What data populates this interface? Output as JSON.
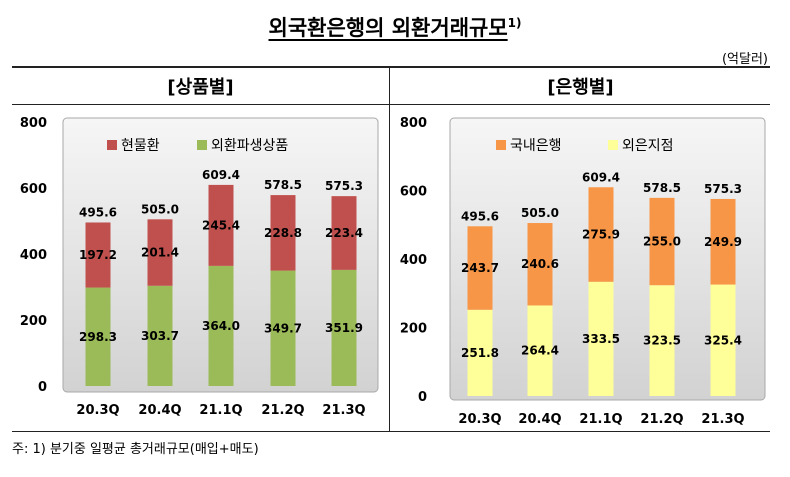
{
  "title": "외국환은행의 외환거래규모",
  "title_note": "1)",
  "unit": "(억달러)",
  "footnote": "주: 1) 분기중 일평균 총거래규모(매입+매도)",
  "chart_data": [
    {
      "type": "bar",
      "stacked": true,
      "title": "[상품별]",
      "categories": [
        "20.3Q",
        "20.4Q",
        "21.1Q",
        "21.2Q",
        "21.3Q"
      ],
      "series": [
        {
          "name": "현물환",
          "color": "#C0504D",
          "values": [
            197.2,
            201.4,
            245.4,
            228.8,
            223.4
          ]
        },
        {
          "name": "외환파생상품",
          "color": "#9BBB59",
          "values": [
            298.3,
            303.7,
            364.0,
            349.7,
            351.9
          ]
        }
      ],
      "totals": [
        495.6,
        505.0,
        609.4,
        578.5,
        575.3
      ],
      "ylim": [
        0,
        800
      ],
      "yticks": [
        0,
        200,
        400,
        600,
        800
      ],
      "xlabel": "",
      "ylabel": "",
      "legend": "top",
      "grid": false
    },
    {
      "type": "bar",
      "stacked": true,
      "title": "[은행별]",
      "categories": [
        "20.3Q",
        "20.4Q",
        "21.1Q",
        "21.2Q",
        "21.3Q"
      ],
      "series": [
        {
          "name": "국내은행",
          "color": "#F79646",
          "values": [
            243.7,
            240.6,
            275.9,
            255.0,
            249.9
          ]
        },
        {
          "name": "외은지점",
          "color": "#FFFF99",
          "values": [
            251.8,
            264.4,
            333.5,
            323.5,
            325.4
          ]
        }
      ],
      "totals": [
        495.6,
        505.0,
        609.4,
        578.5,
        575.3
      ],
      "ylim": [
        0,
        800
      ],
      "yticks": [
        0,
        200,
        400,
        600,
        800
      ],
      "xlabel": "",
      "ylabel": "",
      "legend": "top",
      "grid": false
    }
  ]
}
